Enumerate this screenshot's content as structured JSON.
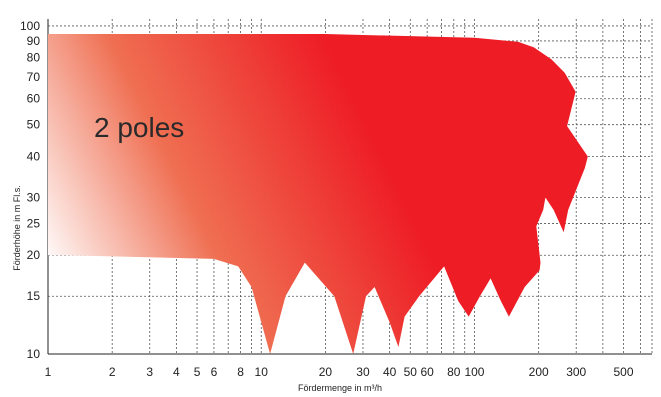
{
  "chart_data": {
    "type": "area",
    "title": "",
    "xlabel": "Fördermenge in m³/h",
    "ylabel": "Förderhöhe in m Fl.s.",
    "x_scale": "log",
    "y_scale": "log",
    "xlim": [
      1,
      680
    ],
    "ylim": [
      10,
      105
    ],
    "grid": true,
    "x_ticks": [
      1,
      2,
      3,
      4,
      5,
      6,
      8,
      10,
      20,
      30,
      40,
      50,
      60,
      80,
      100,
      200,
      300,
      500
    ],
    "y_ticks": [
      10,
      15,
      20,
      25,
      30,
      40,
      50,
      60,
      70,
      80,
      90,
      100
    ],
    "annotations": [
      {
        "text": "2 poles"
      }
    ],
    "colors": {
      "fill_start": "#ffffff",
      "fill_mid": "#ef6f52",
      "fill_end": "#ee1c25"
    },
    "region": {
      "name": "2 poles",
      "boundary": [
        [
          1,
          94.5
        ],
        [
          20,
          94.5
        ],
        [
          100,
          92
        ],
        [
          160,
          89.5
        ],
        [
          190,
          86
        ],
        [
          230,
          79
        ],
        [
          265,
          72
        ],
        [
          298,
          63
        ],
        [
          272,
          49.5
        ],
        [
          340,
          40
        ],
        [
          330,
          37
        ],
        [
          275,
          27.5
        ],
        [
          262,
          23.5
        ],
        [
          235,
          27.5
        ],
        [
          215,
          30
        ],
        [
          210,
          27.5
        ],
        [
          195,
          24.5
        ],
        [
          204,
          19
        ],
        [
          202,
          18
        ],
        [
          172,
          16
        ],
        [
          145,
          13
        ],
        [
          133,
          14.5
        ],
        [
          119,
          17
        ],
        [
          106,
          15
        ],
        [
          94,
          13
        ],
        [
          84,
          14.5
        ],
        [
          72,
          18.5
        ],
        [
          55,
          15
        ],
        [
          47,
          13
        ],
        [
          44,
          10.5
        ],
        [
          40,
          12.5
        ],
        [
          34,
          16
        ],
        [
          31,
          15
        ],
        [
          27,
          10
        ],
        [
          22,
          15
        ],
        [
          16,
          19
        ],
        [
          13,
          15
        ],
        [
          11,
          10
        ],
        [
          9,
          16
        ],
        [
          7.8,
          18.5
        ],
        [
          6,
          19.5
        ],
        [
          1.2,
          20
        ],
        [
          1,
          20
        ]
      ]
    }
  }
}
